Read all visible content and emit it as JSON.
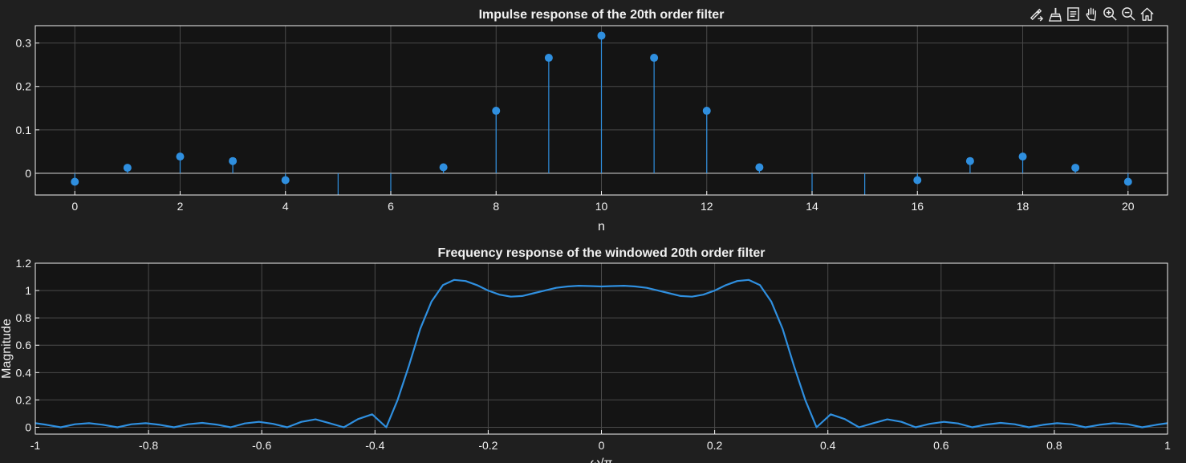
{
  "toolbar": {
    "buttons": [
      {
        "name": "export-icon"
      },
      {
        "name": "brush-icon"
      },
      {
        "name": "data-tips-icon"
      },
      {
        "name": "pan-icon"
      },
      {
        "name": "zoom-in-icon"
      },
      {
        "name": "zoom-out-icon"
      },
      {
        "name": "home-icon"
      }
    ]
  },
  "colors": {
    "figure_bg": "#1f1f1f",
    "axes_bg": "#141414",
    "grid": "#4a4a4a",
    "axes_box": "#f0f0f0",
    "series": "#2f8fdf",
    "text": "#f0f0f0"
  },
  "chart_data": [
    {
      "type": "stem",
      "title": "Impulse response of the 20th order filter",
      "xlabel": "n",
      "ylabel": "",
      "xlim": [
        -0.75,
        20.75
      ],
      "ylim": [
        -0.05,
        0.34
      ],
      "xticks": [
        0,
        2,
        4,
        6,
        8,
        10,
        12,
        14,
        16,
        18,
        20
      ],
      "xtick_labels": [
        "0",
        "2",
        "4",
        "6",
        "8",
        "10",
        "12",
        "14",
        "16",
        "18",
        "20"
      ],
      "yticks": [
        0,
        0.1,
        0.2,
        0.3
      ],
      "ytick_labels": [
        "0",
        "0.1",
        "0.2",
        "0.3"
      ],
      "grid": true,
      "x": [
        0,
        1,
        2,
        3,
        4,
        5,
        6,
        7,
        8,
        9,
        10,
        11,
        12,
        13,
        14,
        15,
        16,
        17,
        18,
        19,
        20
      ],
      "y": [
        -0.0195,
        0.0127,
        0.0385,
        0.0282,
        -0.0158,
        -0.05,
        -0.05,
        0.0138,
        0.144,
        0.266,
        0.317,
        0.266,
        0.144,
        0.0138,
        -0.05,
        -0.05,
        -0.0158,
        0.0282,
        0.0385,
        0.0127,
        -0.0195
      ],
      "marker_hidden": [
        5,
        6,
        14,
        15
      ]
    },
    {
      "type": "line",
      "title": "Frequency response of the windowed 20th order filter",
      "xlabel": "ω/π",
      "ylabel": "Magnitude",
      "xlim": [
        -1,
        1
      ],
      "ylim": [
        -0.05,
        1.2
      ],
      "xticks": [
        -1,
        -0.8,
        -0.6,
        -0.4,
        -0.2,
        0,
        0.2,
        0.4,
        0.6,
        0.8,
        1
      ],
      "xtick_labels": [
        "-1",
        "-0.8",
        "-0.6",
        "-0.4",
        "-0.2",
        "0",
        "0.2",
        "0.4",
        "0.6",
        "0.8",
        "1"
      ],
      "yticks": [
        0,
        0.2,
        0.4,
        0.6,
        0.8,
        1,
        1.2
      ],
      "ytick_labels": [
        "0",
        "0.2",
        "0.4",
        "0.6",
        "0.8",
        "1",
        "1.2"
      ],
      "grid": true,
      "x": [
        -1,
        -0.98,
        -0.955,
        -0.93,
        -0.905,
        -0.88,
        -0.855,
        -0.83,
        -0.805,
        -0.78,
        -0.755,
        -0.73,
        -0.705,
        -0.68,
        -0.655,
        -0.63,
        -0.605,
        -0.58,
        -0.555,
        -0.53,
        -0.505,
        -0.48,
        -0.455,
        -0.43,
        -0.405,
        -0.38,
        -0.36,
        -0.34,
        -0.32,
        -0.3,
        -0.28,
        -0.26,
        -0.24,
        -0.22,
        -0.2,
        -0.18,
        -0.16,
        -0.14,
        -0.12,
        -0.1,
        -0.08,
        -0.06,
        -0.04,
        -0.02,
        0,
        0.02,
        0.04,
        0.06,
        0.08,
        0.1,
        0.12,
        0.14,
        0.16,
        0.18,
        0.2,
        0.22,
        0.24,
        0.26,
        0.28,
        0.3,
        0.32,
        0.34,
        0.36,
        0.38,
        0.405,
        0.43,
        0.455,
        0.48,
        0.505,
        0.53,
        0.555,
        0.58,
        0.605,
        0.63,
        0.655,
        0.68,
        0.705,
        0.73,
        0.755,
        0.78,
        0.805,
        0.83,
        0.855,
        0.88,
        0.905,
        0.93,
        0.955,
        0.98,
        1
      ],
      "y": [
        0.03,
        0.018,
        0.0,
        0.022,
        0.03,
        0.018,
        0.0,
        0.022,
        0.03,
        0.018,
        0.0,
        0.022,
        0.032,
        0.02,
        0.0,
        0.028,
        0.04,
        0.025,
        0.0,
        0.04,
        0.058,
        0.03,
        0.0,
        0.06,
        0.095,
        0.0,
        0.2,
        0.45,
        0.72,
        0.92,
        1.04,
        1.078,
        1.07,
        1.04,
        1.0,
        0.97,
        0.955,
        0.96,
        0.98,
        1.0,
        1.02,
        1.03,
        1.035,
        1.033,
        1.03,
        1.033,
        1.035,
        1.03,
        1.02,
        1.0,
        0.98,
        0.96,
        0.955,
        0.97,
        1.0,
        1.04,
        1.07,
        1.078,
        1.04,
        0.92,
        0.72,
        0.45,
        0.2,
        0.0,
        0.095,
        0.06,
        0.0,
        0.03,
        0.058,
        0.04,
        0.0,
        0.025,
        0.04,
        0.028,
        0.0,
        0.02,
        0.032,
        0.022,
        0.0,
        0.018,
        0.03,
        0.022,
        0.0,
        0.018,
        0.03,
        0.022,
        0.0,
        0.018,
        0.03
      ]
    }
  ]
}
